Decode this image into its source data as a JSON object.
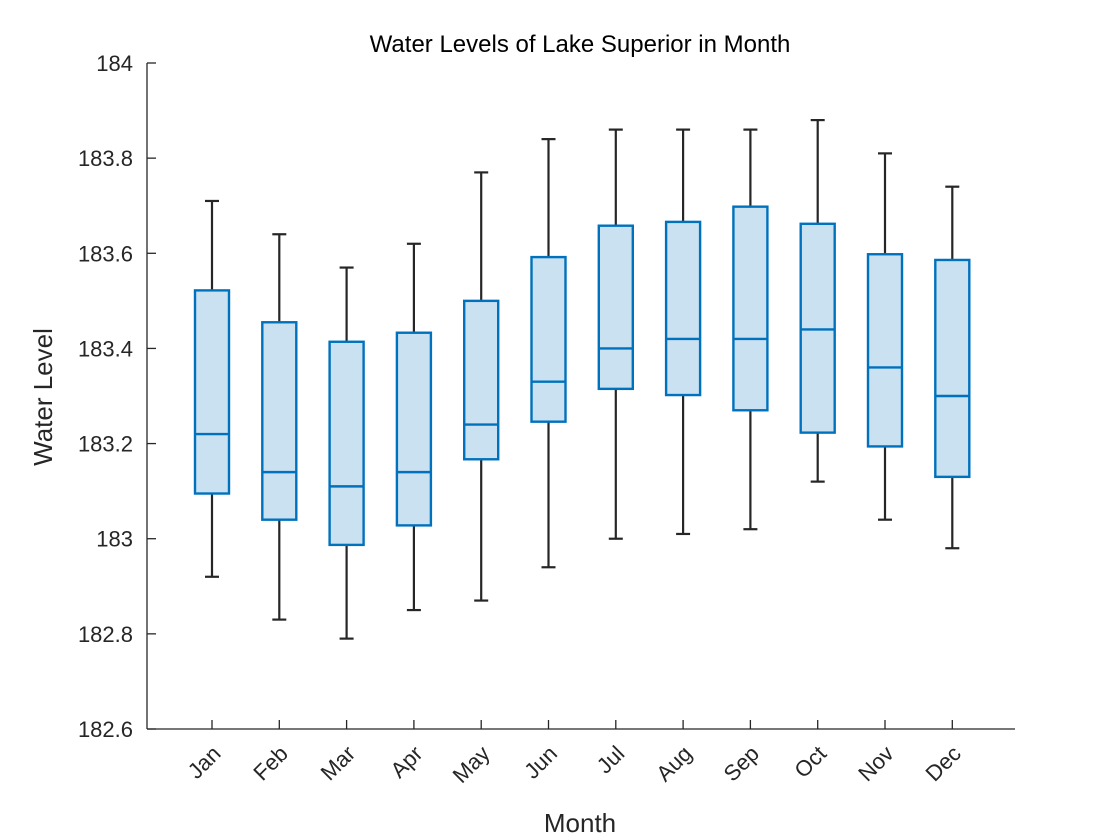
{
  "chart_data": {
    "type": "boxplot",
    "title": "Water Levels of Lake Superior in Month",
    "xlabel": "Month",
    "ylabel": "Water Level",
    "ylim": [
      182.6,
      184
    ],
    "yticks": [
      182.6,
      182.8,
      183,
      183.2,
      183.4,
      183.6,
      183.8,
      184
    ],
    "ytick_labels": [
      "182.6",
      "182.8",
      "183",
      "183.2",
      "183.4",
      "183.6",
      "183.8",
      "184"
    ],
    "categories": [
      "Jan",
      "Feb",
      "Mar",
      "Apr",
      "May",
      "Jun",
      "Jul",
      "Aug",
      "Sep",
      "Oct",
      "Nov",
      "Dec"
    ],
    "box_color": "#0072BD",
    "box_fill": "#C9E1F1",
    "whisker_color": "#262626",
    "series": [
      {
        "name": "Jan",
        "min": 182.92,
        "q1": 183.095,
        "median": 183.22,
        "q3": 183.522,
        "max": 183.71
      },
      {
        "name": "Feb",
        "min": 182.83,
        "q1": 183.04,
        "median": 183.14,
        "q3": 183.455,
        "max": 183.64
      },
      {
        "name": "Mar",
        "min": 182.79,
        "q1": 182.987,
        "median": 183.11,
        "q3": 183.414,
        "max": 183.57
      },
      {
        "name": "Apr",
        "min": 182.85,
        "q1": 183.028,
        "median": 183.14,
        "q3": 183.433,
        "max": 183.62
      },
      {
        "name": "May",
        "min": 182.87,
        "q1": 183.167,
        "median": 183.24,
        "q3": 183.5,
        "max": 183.77
      },
      {
        "name": "Jun",
        "min": 182.94,
        "q1": 183.246,
        "median": 183.33,
        "q3": 183.592,
        "max": 183.84
      },
      {
        "name": "Jul",
        "min": 183.0,
        "q1": 183.315,
        "median": 183.4,
        "q3": 183.658,
        "max": 183.86
      },
      {
        "name": "Aug",
        "min": 183.01,
        "q1": 183.302,
        "median": 183.42,
        "q3": 183.666,
        "max": 183.86
      },
      {
        "name": "Sep",
        "min": 183.02,
        "q1": 183.27,
        "median": 183.42,
        "q3": 183.698,
        "max": 183.86
      },
      {
        "name": "Oct",
        "min": 183.12,
        "q1": 183.223,
        "median": 183.44,
        "q3": 183.662,
        "max": 183.88
      },
      {
        "name": "Nov",
        "min": 183.04,
        "q1": 183.194,
        "median": 183.36,
        "q3": 183.598,
        "max": 183.81
      },
      {
        "name": "Dec",
        "min": 182.98,
        "q1": 183.13,
        "median": 183.3,
        "q3": 183.586,
        "max": 183.74
      }
    ]
  }
}
